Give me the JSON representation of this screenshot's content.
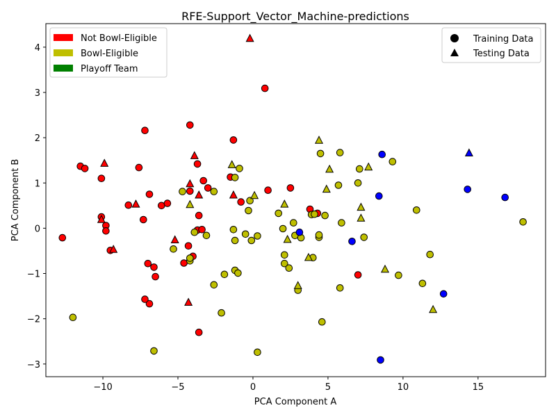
{
  "chart_data": {
    "type": "scatter",
    "title": "RFE-Support_Vector_Machine-predictions",
    "xlabel": "PCA Component A",
    "ylabel": "PCA Component B",
    "xlim": [
      -13.8,
      19.5
    ],
    "ylim": [
      -3.28,
      4.52
    ],
    "xticks": [
      -10,
      -5,
      0,
      5,
      10,
      15
    ],
    "yticks": [
      -3,
      -2,
      -1,
      0,
      1,
      2,
      3,
      4
    ],
    "grid": false,
    "class_legend": {
      "placement": "upper-left",
      "entries": [
        {
          "label": "Not Bowl-Eligible",
          "color": "#ff0000"
        },
        {
          "label": "Bowl-Eligible",
          "color": "#bfbf00"
        },
        {
          "label": "Playoff Team",
          "color": "#008000"
        }
      ]
    },
    "marker_legend": {
      "placement": "upper-right",
      "entries": [
        {
          "label": "Training Data",
          "marker": "circle"
        },
        {
          "label": "Testing Data",
          "marker": "triangle"
        }
      ]
    },
    "colors": {
      "red": "#ff0000",
      "yellow": "#bfbf00",
      "blue": "#0000ff"
    },
    "series": [
      {
        "color": "red",
        "marker": "circle",
        "points": [
          [
            -12.7,
            -0.21
          ],
          [
            -11.5,
            1.37
          ],
          [
            -11.2,
            1.32
          ],
          [
            -10.1,
            1.1
          ],
          [
            -10.1,
            0.25
          ],
          [
            -9.8,
            0.06
          ],
          [
            -9.8,
            -0.06
          ],
          [
            -9.5,
            -0.49
          ],
          [
            -8.3,
            0.51
          ],
          [
            -7.6,
            1.34
          ],
          [
            -7.3,
            0.19
          ],
          [
            -7.2,
            2.16
          ],
          [
            -7.0,
            -0.78
          ],
          [
            -6.9,
            0.75
          ],
          [
            -6.9,
            -1.67
          ],
          [
            -6.6,
            -0.86
          ],
          [
            -6.5,
            -1.07
          ],
          [
            -7.2,
            -1.57
          ],
          [
            -6.1,
            0.5
          ],
          [
            -5.7,
            0.55
          ],
          [
            -4.6,
            -0.77
          ],
          [
            -4.3,
            -0.39
          ],
          [
            -4.2,
            2.28
          ],
          [
            -4.2,
            0.82
          ],
          [
            -4.0,
            -0.62
          ],
          [
            -3.7,
            -0.04
          ],
          [
            -3.7,
            1.42
          ],
          [
            -3.6,
            0.28
          ],
          [
            -3.4,
            -0.03
          ],
          [
            -3.6,
            -2.3
          ],
          [
            -3.3,
            1.05
          ],
          [
            -3.0,
            0.89
          ],
          [
            -1.5,
            1.13
          ],
          [
            -1.3,
            1.95
          ],
          [
            -0.8,
            0.58
          ],
          [
            0.8,
            3.09
          ],
          [
            1.0,
            0.84
          ],
          [
            2.5,
            0.89
          ],
          [
            3.8,
            0.42
          ],
          [
            4.3,
            0.33
          ],
          [
            7.0,
            -1.03
          ]
        ]
      },
      {
        "color": "red",
        "marker": "triangle",
        "points": [
          [
            -10.1,
            0.19
          ],
          [
            -9.9,
            1.43
          ],
          [
            -9.3,
            -0.47
          ],
          [
            -7.8,
            0.53
          ],
          [
            -5.2,
            -0.26
          ],
          [
            -4.3,
            -1.64
          ],
          [
            -4.2,
            0.98
          ],
          [
            -3.9,
            1.6
          ],
          [
            -3.6,
            0.73
          ],
          [
            -1.3,
            0.73
          ],
          [
            -0.2,
            4.19
          ]
        ]
      },
      {
        "color": "yellow",
        "marker": "circle",
        "points": [
          [
            -12.0,
            -1.97
          ],
          [
            -6.6,
            -2.71
          ],
          [
            -5.3,
            -0.46
          ],
          [
            -4.7,
            0.81
          ],
          [
            -4.2,
            -0.72
          ],
          [
            -4.2,
            -0.66
          ],
          [
            -3.9,
            -0.09
          ],
          [
            -3.1,
            -0.16
          ],
          [
            -2.6,
            0.81
          ],
          [
            -2.6,
            -1.25
          ],
          [
            -2.1,
            -1.87
          ],
          [
            -1.9,
            -1.02
          ],
          [
            -1.3,
            -0.03
          ],
          [
            -1.2,
            -0.27
          ],
          [
            -1.2,
            -0.93
          ],
          [
            -1.2,
            1.12
          ],
          [
            -1.0,
            -0.99
          ],
          [
            -0.9,
            1.32
          ],
          [
            -0.5,
            -0.13
          ],
          [
            -0.3,
            0.39
          ],
          [
            -0.2,
            0.61
          ],
          [
            -0.1,
            -0.27
          ],
          [
            0.3,
            -0.17
          ],
          [
            0.3,
            -2.74
          ],
          [
            1.7,
            0.33
          ],
          [
            2.0,
            -0.01
          ],
          [
            2.1,
            -0.59
          ],
          [
            2.1,
            -0.78
          ],
          [
            2.4,
            -0.88
          ],
          [
            2.7,
            0.12
          ],
          [
            2.8,
            -0.16
          ],
          [
            3.0,
            -1.37
          ],
          [
            3.2,
            -0.21
          ],
          [
            3.9,
            0.3
          ],
          [
            4.0,
            -0.65
          ],
          [
            4.1,
            0.31
          ],
          [
            4.4,
            -0.2
          ],
          [
            4.4,
            -0.15
          ],
          [
            4.5,
            1.65
          ],
          [
            4.6,
            -2.07
          ],
          [
            4.8,
            0.28
          ],
          [
            5.7,
            0.95
          ],
          [
            5.8,
            1.67
          ],
          [
            5.8,
            -1.32
          ],
          [
            5.9,
            0.12
          ],
          [
            7.0,
            1.0
          ],
          [
            7.1,
            1.31
          ],
          [
            7.4,
            -0.2
          ],
          [
            9.3,
            1.47
          ],
          [
            9.7,
            -1.04
          ],
          [
            10.9,
            0.4
          ],
          [
            11.3,
            -1.22
          ],
          [
            11.8,
            -0.58
          ],
          [
            18.0,
            0.14
          ]
        ]
      },
      {
        "color": "yellow",
        "marker": "triangle",
        "points": [
          [
            -4.2,
            0.52
          ],
          [
            -1.4,
            1.4
          ],
          [
            0.1,
            0.72
          ],
          [
            2.1,
            0.53
          ],
          [
            2.3,
            -0.25
          ],
          [
            3.0,
            -1.27
          ],
          [
            3.7,
            -0.65
          ],
          [
            4.4,
            1.94
          ],
          [
            4.9,
            0.86
          ],
          [
            5.1,
            1.3
          ],
          [
            7.2,
            0.22
          ],
          [
            7.2,
            0.46
          ],
          [
            7.7,
            1.35
          ],
          [
            8.8,
            -0.91
          ],
          [
            12.0,
            -1.8
          ]
        ]
      },
      {
        "color": "blue",
        "marker": "circle",
        "points": [
          [
            3.1,
            -0.09
          ],
          [
            6.6,
            -0.29
          ],
          [
            8.4,
            0.71
          ],
          [
            8.6,
            1.63
          ],
          [
            8.5,
            -2.91
          ],
          [
            12.7,
            -1.45
          ],
          [
            14.3,
            0.86
          ],
          [
            16.8,
            0.68
          ]
        ]
      },
      {
        "color": "blue",
        "marker": "triangle",
        "points": [
          [
            14.4,
            1.66
          ]
        ]
      }
    ]
  }
}
